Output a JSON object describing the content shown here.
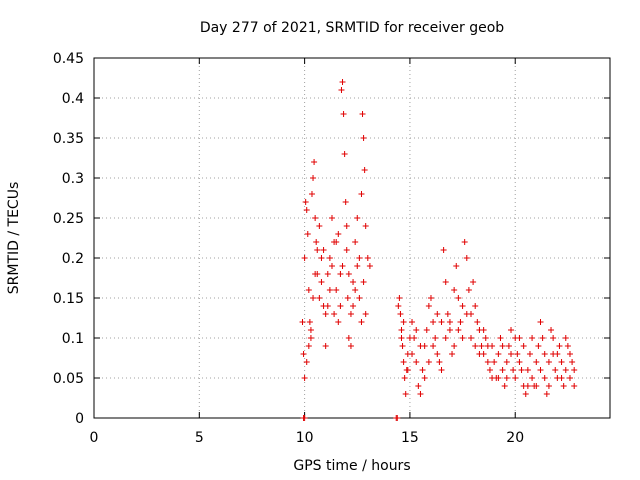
{
  "chart_data": {
    "type": "scatter",
    "title": "Day 277 of 2021, SRMTID for receiver geob",
    "xlabel": "GPS time / hours",
    "ylabel": "SRMTID / TECUs",
    "xlim": [
      0,
      24.5
    ],
    "ylim": [
      0,
      0.45
    ],
    "x_ticks": [
      0,
      5,
      10,
      15,
      20
    ],
    "x_tick_labels": [
      "0",
      "5",
      "10",
      "15",
      "20"
    ],
    "y_ticks": [
      0,
      0.05,
      0.1,
      0.15,
      0.2,
      0.25,
      0.3,
      0.35,
      0.4,
      0.45
    ],
    "y_tick_labels": [
      "0",
      "0.05",
      "0.1",
      "0.15",
      "0.2",
      "0.25",
      "0.3",
      "0.35",
      "0.4",
      "0.45"
    ],
    "grid": true,
    "marker": "+",
    "series": [
      {
        "name": "SRMTID",
        "color": "#e00000",
        "points": [
          [
            9.95,
            0.0
          ],
          [
            10.0,
            0.0
          ],
          [
            14.35,
            0.0
          ],
          [
            14.4,
            0.0
          ],
          [
            9.9,
            0.12
          ],
          [
            9.95,
            0.08
          ],
          [
            10.0,
            0.2
          ],
          [
            10.05,
            0.27
          ],
          [
            10.1,
            0.26
          ],
          [
            10.15,
            0.23
          ],
          [
            10.2,
            0.16
          ],
          [
            10.25,
            0.12
          ],
          [
            10.3,
            0.1
          ],
          [
            10.35,
            0.28
          ],
          [
            10.4,
            0.3
          ],
          [
            10.45,
            0.32
          ],
          [
            10.5,
            0.25
          ],
          [
            10.55,
            0.22
          ],
          [
            10.6,
            0.18
          ],
          [
            10.7,
            0.15
          ],
          [
            10.8,
            0.2
          ],
          [
            10.9,
            0.14
          ],
          [
            11.0,
            0.13
          ],
          [
            11.1,
            0.18
          ],
          [
            11.2,
            0.2
          ],
          [
            11.3,
            0.25
          ],
          [
            11.4,
            0.22
          ],
          [
            11.5,
            0.16
          ],
          [
            11.6,
            0.12
          ],
          [
            11.7,
            0.18
          ],
          [
            11.75,
            0.41
          ],
          [
            11.8,
            0.42
          ],
          [
            11.85,
            0.38
          ],
          [
            11.9,
            0.33
          ],
          [
            11.95,
            0.27
          ],
          [
            12.0,
            0.21
          ],
          [
            12.05,
            0.15
          ],
          [
            12.1,
            0.1
          ],
          [
            12.2,
            0.09
          ],
          [
            12.3,
            0.17
          ],
          [
            12.4,
            0.22
          ],
          [
            12.5,
            0.25
          ],
          [
            12.6,
            0.2
          ],
          [
            12.7,
            0.28
          ],
          [
            12.75,
            0.38
          ],
          [
            12.8,
            0.35
          ],
          [
            12.85,
            0.31
          ],
          [
            12.9,
            0.24
          ],
          [
            13.0,
            0.2
          ],
          [
            13.1,
            0.19
          ],
          [
            10.0,
            0.05
          ],
          [
            10.1,
            0.07
          ],
          [
            10.2,
            0.09
          ],
          [
            10.3,
            0.11
          ],
          [
            10.4,
            0.15
          ],
          [
            10.5,
            0.18
          ],
          [
            10.6,
            0.21
          ],
          [
            10.7,
            0.24
          ],
          [
            10.8,
            0.17
          ],
          [
            10.9,
            0.21
          ],
          [
            11.0,
            0.09
          ],
          [
            11.1,
            0.14
          ],
          [
            11.2,
            0.16
          ],
          [
            11.3,
            0.19
          ],
          [
            11.4,
            0.13
          ],
          [
            11.5,
            0.22
          ],
          [
            11.6,
            0.23
          ],
          [
            11.7,
            0.14
          ],
          [
            11.8,
            0.19
          ],
          [
            12.0,
            0.24
          ],
          [
            12.1,
            0.18
          ],
          [
            12.2,
            0.13
          ],
          [
            12.3,
            0.14
          ],
          [
            12.4,
            0.16
          ],
          [
            12.5,
            0.19
          ],
          [
            12.6,
            0.15
          ],
          [
            12.7,
            0.12
          ],
          [
            12.8,
            0.17
          ],
          [
            12.9,
            0.13
          ],
          [
            14.45,
            0.14
          ],
          [
            14.5,
            0.15
          ],
          [
            14.55,
            0.13
          ],
          [
            14.6,
            0.11
          ],
          [
            14.65,
            0.09
          ],
          [
            14.7,
            0.07
          ],
          [
            14.75,
            0.05
          ],
          [
            14.8,
            0.03
          ],
          [
            14.85,
            0.06
          ],
          [
            14.9,
            0.08
          ],
          [
            15.0,
            0.1
          ],
          [
            15.1,
            0.12
          ],
          [
            15.2,
            0.1
          ],
          [
            15.3,
            0.07
          ],
          [
            15.4,
            0.04
          ],
          [
            15.5,
            0.03
          ],
          [
            15.6,
            0.06
          ],
          [
            15.7,
            0.09
          ],
          [
            15.8,
            0.11
          ],
          [
            15.9,
            0.14
          ],
          [
            16.0,
            0.15
          ],
          [
            16.1,
            0.12
          ],
          [
            16.2,
            0.1
          ],
          [
            16.3,
            0.08
          ],
          [
            16.4,
            0.07
          ],
          [
            16.5,
            0.12
          ],
          [
            16.6,
            0.21
          ],
          [
            16.7,
            0.17
          ],
          [
            16.8,
            0.13
          ],
          [
            16.9,
            0.11
          ],
          [
            17.0,
            0.08
          ],
          [
            17.1,
            0.16
          ],
          [
            17.2,
            0.19
          ],
          [
            17.3,
            0.15
          ],
          [
            17.4,
            0.12
          ],
          [
            17.5,
            0.14
          ],
          [
            17.6,
            0.22
          ],
          [
            17.7,
            0.2
          ],
          [
            17.8,
            0.16
          ],
          [
            17.9,
            0.13
          ],
          [
            18.0,
            0.17
          ],
          [
            18.1,
            0.14
          ],
          [
            18.2,
            0.12
          ],
          [
            18.3,
            0.11
          ],
          [
            18.4,
            0.09
          ],
          [
            18.5,
            0.08
          ],
          [
            18.6,
            0.1
          ],
          [
            18.7,
            0.07
          ],
          [
            18.8,
            0.06
          ],
          [
            18.9,
            0.09
          ],
          [
            19.0,
            0.07
          ],
          [
            14.6,
            0.1
          ],
          [
            14.7,
            0.12
          ],
          [
            14.9,
            0.06
          ],
          [
            15.1,
            0.08
          ],
          [
            15.3,
            0.11
          ],
          [
            15.5,
            0.09
          ],
          [
            15.7,
            0.05
          ],
          [
            15.9,
            0.07
          ],
          [
            16.1,
            0.09
          ],
          [
            16.3,
            0.13
          ],
          [
            16.5,
            0.06
          ],
          [
            16.7,
            0.1
          ],
          [
            16.9,
            0.12
          ],
          [
            17.1,
            0.09
          ],
          [
            17.3,
            0.11
          ],
          [
            17.5,
            0.1
          ],
          [
            17.7,
            0.13
          ],
          [
            17.9,
            0.1
          ],
          [
            18.1,
            0.09
          ],
          [
            18.3,
            0.08
          ],
          [
            18.5,
            0.11
          ],
          [
            18.7,
            0.09
          ],
          [
            18.9,
            0.05
          ],
          [
            19.1,
            0.05
          ],
          [
            19.2,
            0.08
          ],
          [
            19.3,
            0.1
          ],
          [
            19.4,
            0.06
          ],
          [
            19.5,
            0.04
          ],
          [
            19.6,
            0.07
          ],
          [
            19.7,
            0.09
          ],
          [
            19.8,
            0.11
          ],
          [
            19.9,
            0.06
          ],
          [
            20.0,
            0.05
          ],
          [
            20.1,
            0.08
          ],
          [
            20.2,
            0.1
          ],
          [
            20.3,
            0.06
          ],
          [
            20.4,
            0.04
          ],
          [
            20.5,
            0.03
          ],
          [
            20.6,
            0.06
          ],
          [
            20.7,
            0.08
          ],
          [
            20.8,
            0.05
          ],
          [
            20.9,
            0.04
          ],
          [
            21.0,
            0.07
          ],
          [
            21.1,
            0.09
          ],
          [
            21.2,
            0.06
          ],
          [
            21.3,
            0.1
          ],
          [
            21.4,
            0.05
          ],
          [
            21.5,
            0.03
          ],
          [
            21.6,
            0.07
          ],
          [
            21.7,
            0.11
          ],
          [
            21.8,
            0.08
          ],
          [
            21.9,
            0.06
          ],
          [
            22.0,
            0.05
          ],
          [
            22.1,
            0.09
          ],
          [
            22.2,
            0.07
          ],
          [
            22.3,
            0.04
          ],
          [
            22.4,
            0.06
          ],
          [
            22.5,
            0.09
          ],
          [
            22.6,
            0.05
          ],
          [
            22.7,
            0.07
          ],
          [
            22.8,
            0.04
          ],
          [
            19.2,
            0.05
          ],
          [
            19.4,
            0.09
          ],
          [
            19.6,
            0.05
          ],
          [
            19.8,
            0.08
          ],
          [
            20.0,
            0.1
          ],
          [
            20.2,
            0.07
          ],
          [
            20.4,
            0.09
          ],
          [
            20.6,
            0.04
          ],
          [
            20.8,
            0.1
          ],
          [
            21.0,
            0.04
          ],
          [
            21.2,
            0.12
          ],
          [
            21.4,
            0.08
          ],
          [
            21.6,
            0.04
          ],
          [
            21.8,
            0.1
          ],
          [
            22.0,
            0.08
          ],
          [
            22.2,
            0.05
          ],
          [
            22.4,
            0.1
          ],
          [
            22.6,
            0.08
          ],
          [
            22.8,
            0.06
          ]
        ]
      }
    ]
  }
}
